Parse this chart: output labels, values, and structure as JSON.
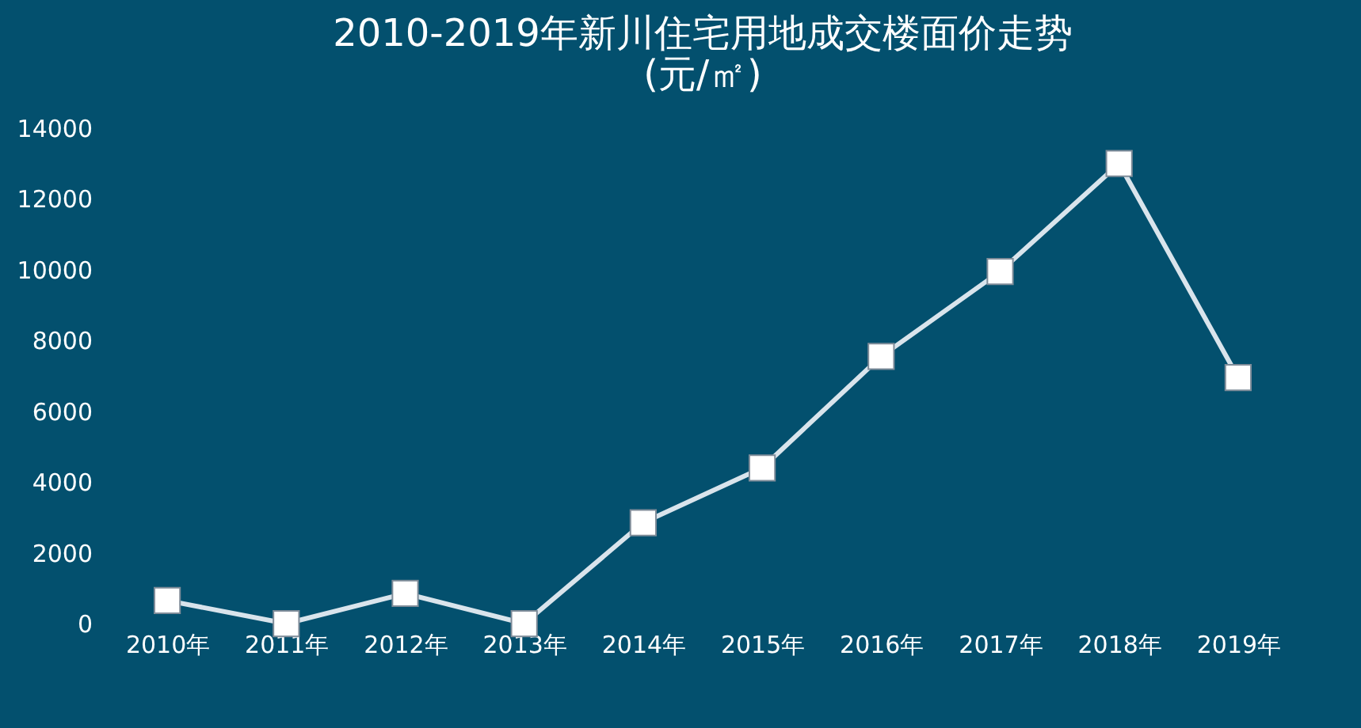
{
  "chart_data": {
    "type": "line",
    "title": [
      "2010-2019年新川住宅用地成交楼面价走势",
      "(元/㎡)"
    ],
    "categories": [
      "2010年",
      "2011年",
      "2012年",
      "2013年",
      "2014年",
      "2015年",
      "2016年",
      "2017年",
      "2018年",
      "2019年"
    ],
    "series": [
      {
        "color": "#d9e4ec",
        "values": [
          650,
          0,
          850,
          0,
          2850,
          4400,
          7550,
          9950,
          13000,
          6950
        ]
      }
    ],
    "ylim": [
      0,
      14000
    ],
    "yticks": [
      0,
      2000,
      4000,
      6000,
      8000,
      10000,
      12000,
      14000
    ],
    "grid": false,
    "legend": false,
    "marker": "square",
    "line_style": "solid"
  }
}
